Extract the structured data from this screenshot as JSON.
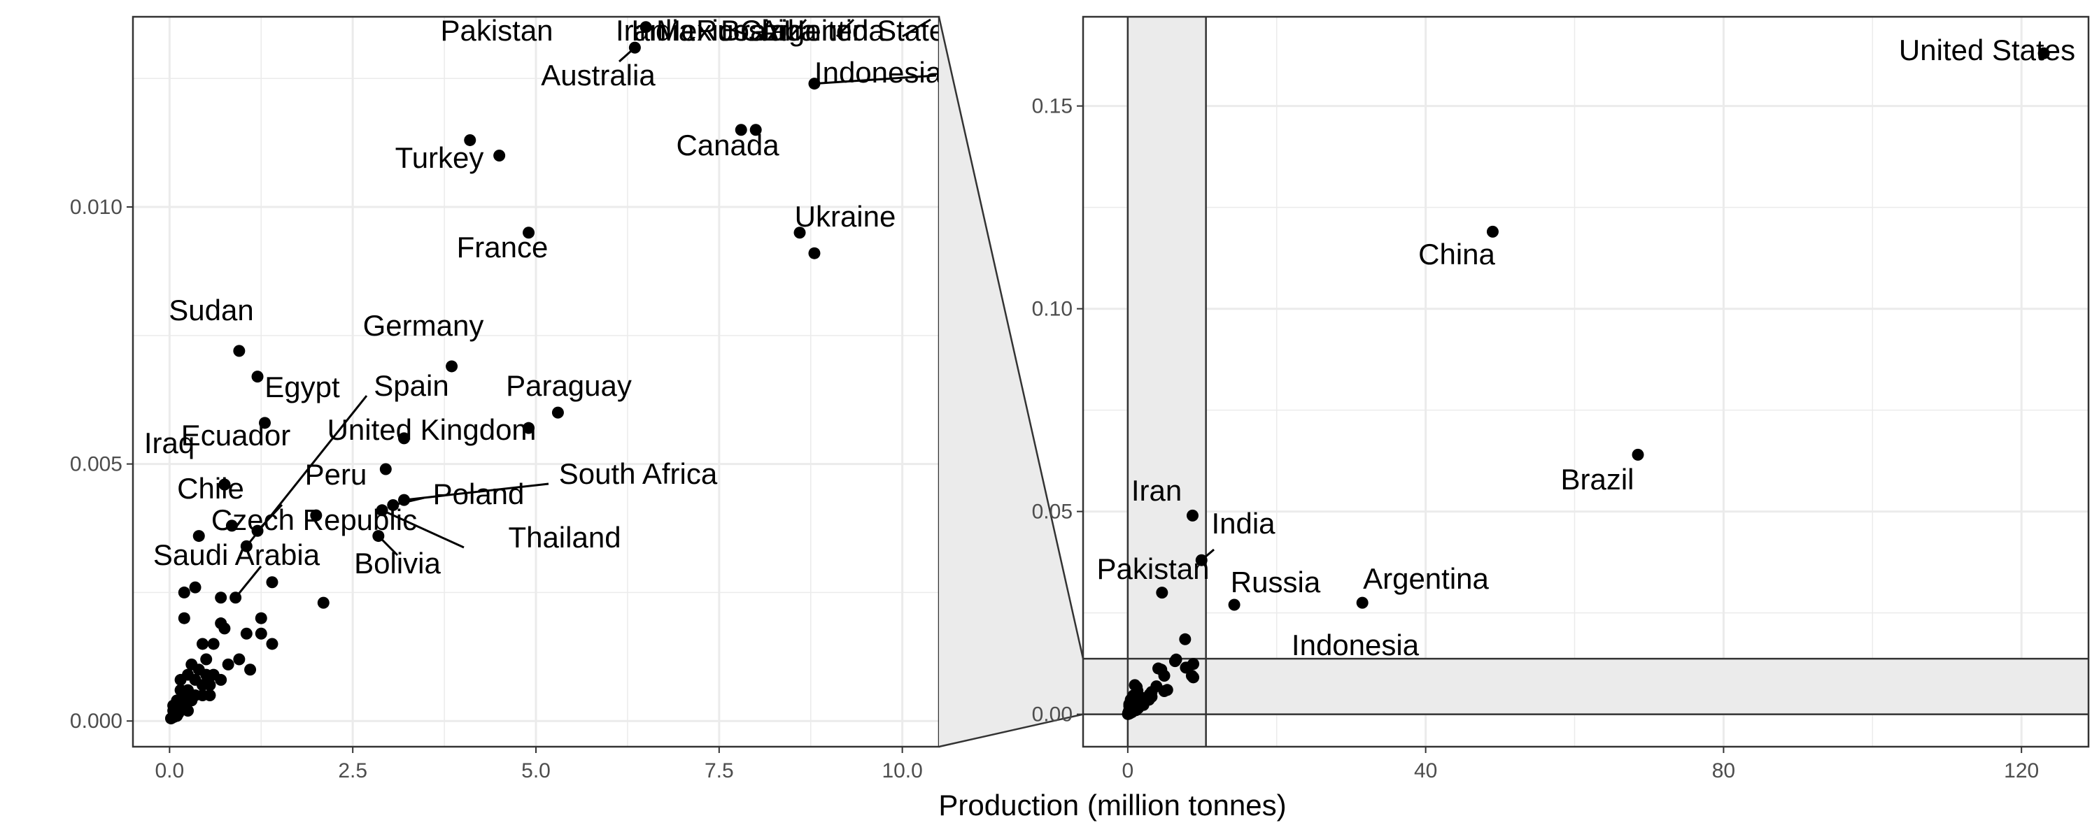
{
  "colors": {
    "panel_fill": "#ebebeb",
    "grid": "#ebebeb",
    "border": "#333333",
    "point": "#000000",
    "text": "#000000",
    "tick_text": "#4d4d4d"
  },
  "chart_data": {
    "type": "scatter",
    "xlabel": "Production (million tonnes)",
    "ylabel": "",
    "grid": true,
    "legend": "none",
    "zoom": {
      "xlim": [
        0,
        10.5
      ],
      "ylim": [
        0,
        0.0137
      ]
    },
    "panels": [
      {
        "name": "zoom",
        "xlim": [
          -0.5,
          10.5
        ],
        "ylim": [
          -0.0005,
          0.0137
        ],
        "xticks": [
          0,
          2.5,
          5,
          7.5,
          10
        ],
        "xtick_labels": [
          "0.0",
          "2.5",
          "5.0",
          "7.5",
          "10.0"
        ],
        "yticks": [
          0,
          0.005,
          0.01
        ],
        "ytick_labels": [
          "0.000",
          "0.005",
          "0.010"
        ]
      },
      {
        "name": "full",
        "xlim": [
          -6,
          129
        ],
        "ylim": [
          -0.008,
          0.172
        ],
        "xticks": [
          0,
          40,
          80,
          120
        ],
        "xtick_labels": [
          "0",
          "40",
          "80",
          "120"
        ],
        "yticks": [
          0,
          0.05,
          0.1,
          0.15
        ],
        "ytick_labels": [
          "0.00",
          "0.05",
          "0.10",
          "0.15"
        ]
      }
    ],
    "labeled_points": [
      {
        "name": "United States",
        "x": 123,
        "y": 0.163
      },
      {
        "name": "China",
        "x": 49,
        "y": 0.119
      },
      {
        "name": "Brazil",
        "x": 68.5,
        "y": 0.064
      },
      {
        "name": "Iran",
        "x": 8.7,
        "y": 0.049
      },
      {
        "name": "India",
        "x": 9.9,
        "y": 0.038
      },
      {
        "name": "Pakistan",
        "x": 4.6,
        "y": 0.03
      },
      {
        "name": "Russia",
        "x": 14.3,
        "y": 0.027
      },
      {
        "name": "Argentina",
        "x": 31.5,
        "y": 0.0275
      },
      {
        "name": "Indonesia",
        "x": 8.8,
        "y": 0.0124
      },
      {
        "name": "Australia",
        "x": 6.35,
        "y": 0.0131
      },
      {
        "name": "Canada",
        "x": 8,
        "y": 0.0115
      },
      {
        "name": "Turkey",
        "x": 4.1,
        "y": 0.0113
      },
      {
        "name": "France",
        "x": 4.9,
        "y": 0.0095
      },
      {
        "name": "Ukraine",
        "x": 8.8,
        "y": 0.0091
      },
      {
        "name": "Sudan",
        "x": 0.95,
        "y": 0.0072
      },
      {
        "name": "Germany",
        "x": 3.85,
        "y": 0.0069
      },
      {
        "name": "Egypt",
        "x": 1.3,
        "y": 0.0058
      },
      {
        "name": "Spain",
        "x": 1.05,
        "y": 0.0034
      },
      {
        "name": "Paraguay",
        "x": 4.9,
        "y": 0.0057
      },
      {
        "name": "United Kingdom",
        "x": 2.95,
        "y": 0.0049
      },
      {
        "name": "Iraq",
        "x": 0.75,
        "y": 0.0046
      },
      {
        "name": "Ecuador",
        "x": 0.75,
        "y": 0.0046
      },
      {
        "name": "Peru",
        "x": 1.2,
        "y": 0.0037
      },
      {
        "name": "South Africa",
        "x": 3.2,
        "y": 0.0043
      },
      {
        "name": "Chile",
        "x": 0.4,
        "y": 0.0036
      },
      {
        "name": "Poland",
        "x": 3.05,
        "y": 0.0042
      },
      {
        "name": "Czech Republic",
        "x": 0.85,
        "y": 0.0038
      },
      {
        "name": "Thailand",
        "x": 2.9,
        "y": 0.0041
      },
      {
        "name": "Bolivia",
        "x": 2.85,
        "y": 0.0036
      },
      {
        "name": "Saudi Arabia",
        "x": 0.9,
        "y": 0.0024
      }
    ],
    "other_points": [
      {
        "x": 1.2,
        "y": 0.0067
      },
      {
        "x": 0.35,
        "y": 0.0026
      },
      {
        "x": 0.2,
        "y": 0.0025
      },
      {
        "x": 1.4,
        "y": 0.0027
      },
      {
        "x": 2.1,
        "y": 0.0023
      },
      {
        "x": 0.7,
        "y": 0.0024
      },
      {
        "x": 0.2,
        "y": 0.002
      },
      {
        "x": 0.7,
        "y": 0.0019
      },
      {
        "x": 1.25,
        "y": 0.002
      },
      {
        "x": 0.75,
        "y": 0.0018
      },
      {
        "x": 1.05,
        "y": 0.0017
      },
      {
        "x": 1.25,
        "y": 0.0017
      },
      {
        "x": 1.4,
        "y": 0.0015
      },
      {
        "x": 0.45,
        "y": 0.0015
      },
      {
        "x": 0.6,
        "y": 0.0015
      },
      {
        "x": 0.95,
        "y": 0.0012
      },
      {
        "x": 1.1,
        "y": 0.001
      },
      {
        "x": 0.3,
        "y": 0.0011
      },
      {
        "x": 0.4,
        "y": 0.001
      },
      {
        "x": 0.5,
        "y": 0.0009
      },
      {
        "x": 0.6,
        "y": 0.0009
      },
      {
        "x": 0.7,
        "y": 0.0008
      },
      {
        "x": 0.15,
        "y": 0.0008
      },
      {
        "x": 0.25,
        "y": 0.0009
      },
      {
        "x": 0.35,
        "y": 0.0008
      },
      {
        "x": 0.45,
        "y": 0.0007
      },
      {
        "x": 0.55,
        "y": 0.0007
      },
      {
        "x": 0.15,
        "y": 0.0006
      },
      {
        "x": 0.25,
        "y": 0.0006
      },
      {
        "x": 0.35,
        "y": 0.0005
      },
      {
        "x": 0.45,
        "y": 0.0005
      },
      {
        "x": 0.1,
        "y": 0.0004
      },
      {
        "x": 0.2,
        "y": 0.0004
      },
      {
        "x": 0.3,
        "y": 0.0004
      },
      {
        "x": 0.05,
        "y": 0.0003
      },
      {
        "x": 0.15,
        "y": 0.0003
      },
      {
        "x": 0.25,
        "y": 0.0002
      },
      {
        "x": 0.05,
        "y": 0.0002
      },
      {
        "x": 0.1,
        "y": 0.0001
      },
      {
        "x": 0.02,
        "y": 5e-05
      },
      {
        "x": 0.06,
        "y": 8e-05
      },
      {
        "x": 0.12,
        "y": 0.00015
      },
      {
        "x": 0.5,
        "y": 0.0012
      },
      {
        "x": 0.8,
        "y": 0.0011
      },
      {
        "x": 0.55,
        "y": 0.0005
      },
      {
        "x": 7.7,
        "y": 0.0185
      },
      {
        "x": 6.5,
        "y": 0.0135
      },
      {
        "x": 7.8,
        "y": 0.0115
      },
      {
        "x": 8.6,
        "y": 0.0095
      },
      {
        "x": 5.3,
        "y": 0.006
      },
      {
        "x": 4.5,
        "y": 0.011
      },
      {
        "x": 3.2,
        "y": 0.0055
      },
      {
        "x": 2.0,
        "y": 0.004
      }
    ]
  }
}
